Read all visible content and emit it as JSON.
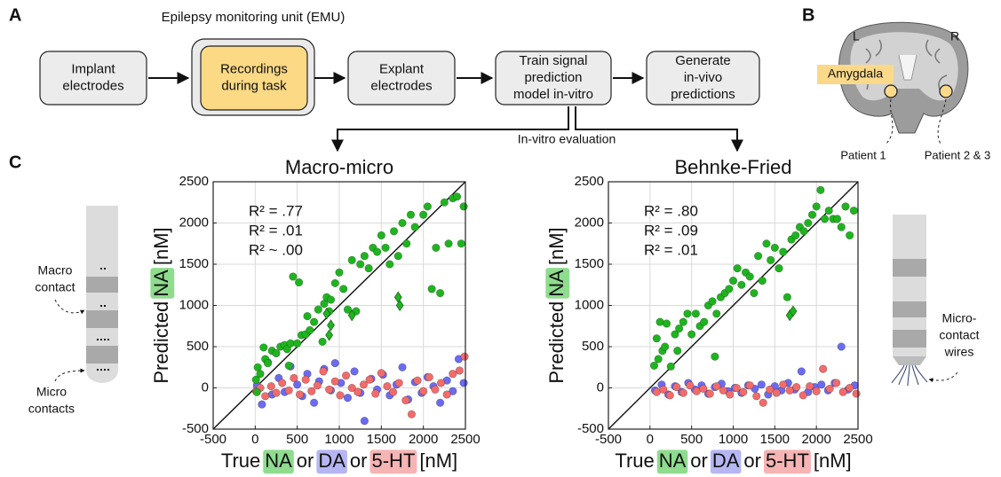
{
  "panel_labels": [
    "A",
    "B",
    "C"
  ],
  "flow": {
    "group_label": "Epilepsy monitoring unit (EMU)",
    "nodes": [
      {
        "lines": [
          "Implant",
          "electrodes"
        ]
      },
      {
        "lines": [
          "Recordings",
          "during task"
        ]
      },
      {
        "lines": [
          "Explant",
          "electrodes"
        ]
      },
      {
        "lines": [
          "Train signal",
          "prediction",
          "model in-vitro"
        ]
      },
      {
        "lines": [
          "Generate",
          "in-vivo",
          "predictions"
        ]
      }
    ],
    "evaluation_label": "In-vitro evaluation"
  },
  "brain": {
    "left": "L",
    "right": "R",
    "region": "Amygdala",
    "patients": [
      "Patient 1",
      "Patient 2 & 3"
    ]
  },
  "electrodes": {
    "macro_label": [
      "Macro",
      "contact"
    ],
    "micro_label": [
      "Micro",
      "contacts"
    ],
    "wires_label": [
      "Micro-",
      "contact",
      "wires"
    ]
  },
  "chart_data": [
    {
      "type": "scatter",
      "title": "Macro-micro",
      "xlabel": [
        {
          "text": "True"
        },
        {
          "text": "NA",
          "highlight": "#8fdc8f"
        },
        {
          "text": "or"
        },
        {
          "text": "DA",
          "highlight": "#b6b6f4"
        },
        {
          "text": "or"
        },
        {
          "text": "5-HT",
          "highlight": "#f6b4b4"
        },
        {
          "text": "[nM]"
        }
      ],
      "ylabel": [
        {
          "text": "Predicted"
        },
        {
          "text": "NA",
          "highlight": "#8fdc8f"
        },
        {
          "text": "[nM]"
        }
      ],
      "xlim": [
        -500,
        2500
      ],
      "ylim": [
        -500,
        2500
      ],
      "xticks": [
        -500,
        0,
        500,
        1000,
        1500,
        2000,
        2500
      ],
      "yticks": [
        -500,
        0,
        500,
        1000,
        1500,
        2000,
        2500
      ],
      "grid": true,
      "annotations": [
        {
          "text": "R² = .77",
          "color": "#1fa81f"
        },
        {
          "text": "R² = .01",
          "color": "#6464ee"
        },
        {
          "text": "R² ~ .00",
          "color": "#f06464"
        }
      ],
      "series": [
        {
          "name": "DA",
          "color": "#6b6bf2",
          "marker": "circle",
          "x": [
            20,
            80,
            150,
            200,
            280,
            350,
            420,
            500,
            560,
            620,
            700,
            760,
            820,
            900,
            950,
            1020,
            1100,
            1180,
            1250,
            1300,
            1380,
            1450,
            1520,
            1600,
            1680,
            1750,
            1820,
            1900,
            1980,
            2050,
            2120,
            2200,
            2280,
            2350,
            2420,
            2480
          ],
          "y": [
            30,
            -200,
            310,
            -80,
            120,
            -50,
            260,
            40,
            -100,
            170,
            -180,
            80,
            230,
            -30,
            300,
            60,
            -120,
            200,
            -60,
            -400,
            110,
            -20,
            160,
            -90,
            40,
            250,
            -140,
            70,
            -60,
            130,
            20,
            -180,
            90,
            -40,
            350,
            60
          ]
        },
        {
          "name": "5-HT",
          "color": "#f26b6b",
          "marker": "circle",
          "x": [
            10,
            60,
            120,
            190,
            250,
            320,
            400,
            460,
            530,
            600,
            670,
            740,
            810,
            880,
            950,
            1010,
            1080,
            1150,
            1220,
            1290,
            1360,
            1430,
            1500,
            1570,
            1640,
            1710,
            1790,
            1860,
            1930,
            2000,
            2070,
            2140,
            2210,
            2280,
            2350,
            2430,
            2490
          ],
          "y": [
            -40,
            0,
            -100,
            20,
            -60,
            60,
            -30,
            120,
            -80,
            100,
            -40,
            30,
            200,
            -20,
            80,
            -90,
            150,
            0,
            -50,
            40,
            100,
            -70,
            180,
            20,
            -50,
            60,
            -150,
            -320,
            90,
            -40,
            130,
            -20,
            60,
            -80,
            170,
            210,
            380
          ]
        },
        {
          "name": "NA",
          "color": "#1fb41f",
          "marker": "circle",
          "x": [
            10,
            20,
            30,
            60,
            100,
            120,
            150,
            200,
            250,
            300,
            350,
            380,
            400,
            420,
            450,
            500,
            520,
            550,
            600,
            620,
            650,
            700,
            750,
            800,
            820,
            850,
            880,
            900,
            950,
            1000,
            1050,
            1100,
            1150,
            1200,
            1250,
            1300,
            1350,
            1400,
            1450,
            1500,
            1550,
            1600,
            1650,
            1700,
            1750,
            1800,
            1850,
            1900,
            2000,
            2050,
            2100,
            2150,
            2200,
            2250,
            2300,
            2350,
            2400,
            2450,
            2480
          ],
          "y": [
            100,
            -50,
            250,
            170,
            490,
            350,
            300,
            450,
            420,
            500,
            520,
            470,
            270,
            540,
            1350,
            540,
            1280,
            640,
            650,
            870,
            700,
            800,
            950,
            560,
            1020,
            1100,
            930,
            1070,
            1270,
            1400,
            1200,
            950,
            1550,
            930,
            1500,
            1600,
            1450,
            1700,
            1650,
            1850,
            1700,
            1500,
            1900,
            1600,
            2000,
            1750,
            2100,
            1950,
            2100,
            2200,
            1200,
            1700,
            1150,
            2250,
            1750,
            2300,
            2320,
            1750,
            2200
          ]
        },
        {
          "color": "#1fb41f",
          "marker": "diamond",
          "x": [
            850,
            900,
            880,
            1150,
            1700,
            1720
          ],
          "y": [
            900,
            760,
            640,
            880,
            1100,
            1000
          ]
        }
      ]
    },
    {
      "type": "scatter",
      "title": "Behnke-Fried",
      "xlabel": [
        {
          "text": "True"
        },
        {
          "text": "NA",
          "highlight": "#8fdc8f"
        },
        {
          "text": "or"
        },
        {
          "text": "DA",
          "highlight": "#b6b6f4"
        },
        {
          "text": "or"
        },
        {
          "text": "5-HT",
          "highlight": "#f6b4b4"
        },
        {
          "text": "[nM]"
        }
      ],
      "ylabel": [
        {
          "text": "Predicted"
        },
        {
          "text": "NA",
          "highlight": "#8fdc8f"
        },
        {
          "text": "[nM]"
        }
      ],
      "xlim": [
        -500,
        2500
      ],
      "ylim": [
        -500,
        2500
      ],
      "xticks": [
        -500,
        0,
        500,
        1000,
        1500,
        2000,
        2500
      ],
      "yticks": [
        -500,
        0,
        500,
        1000,
        1500,
        2000,
        2500
      ],
      "grid": true,
      "annotations": [
        {
          "text": "R² = .80",
          "color": "#1fa81f"
        },
        {
          "text": "R² = .09",
          "color": "#6464ee"
        },
        {
          "text": "R² = .01",
          "color": "#f06464"
        }
      ],
      "series": [
        {
          "name": "DA",
          "color": "#6b6bf2",
          "marker": "circle",
          "x": [
            60,
            140,
            220,
            300,
            380,
            460,
            540,
            620,
            700,
            780,
            860,
            940,
            1020,
            1100,
            1180,
            1260,
            1340,
            1420,
            1500,
            1580,
            1660,
            1740,
            1820,
            1900,
            1980,
            2060,
            2140,
            2220,
            2300,
            2380,
            2460
          ],
          "y": [
            -30,
            40,
            -80,
            20,
            -50,
            60,
            -20,
            30,
            -70,
            10,
            50,
            -40,
            0,
            -60,
            30,
            -10,
            40,
            -80,
            20,
            -30,
            60,
            -20,
            200,
            -50,
            10,
            40,
            -30,
            60,
            500,
            -20,
            30
          ]
        },
        {
          "name": "5-HT",
          "color": "#f26b6b",
          "marker": "circle",
          "x": [
            80,
            160,
            240,
            320,
            400,
            480,
            560,
            640,
            720,
            800,
            880,
            960,
            1040,
            1120,
            1200,
            1280,
            1360,
            1440,
            1520,
            1600,
            1680,
            1760,
            1840,
            1920,
            2000,
            2080,
            2160,
            2240,
            2320,
            2400,
            2480
          ],
          "y": [
            -50,
            -20,
            -90,
            10,
            -60,
            30,
            -40,
            -10,
            -70,
            20,
            -30,
            -80,
            0,
            -50,
            30,
            -100,
            -180,
            -20,
            -60,
            40,
            -30,
            10,
            -90,
            20,
            -40,
            230,
            -10,
            60,
            -50,
            0,
            -70
          ]
        },
        {
          "name": "NA",
          "color": "#1fb41f",
          "marker": "circle",
          "x": [
            50,
            80,
            100,
            120,
            150,
            180,
            200,
            250,
            300,
            330,
            350,
            400,
            450,
            500,
            550,
            600,
            650,
            700,
            750,
            780,
            800,
            850,
            900,
            950,
            1000,
            1050,
            1100,
            1150,
            1200,
            1250,
            1300,
            1350,
            1400,
            1450,
            1500,
            1550,
            1600,
            1650,
            1700,
            1750,
            1800,
            1850,
            1900,
            1950,
            2000,
            2050,
            2100,
            2150,
            2200,
            2250,
            2300,
            2350,
            2400,
            2450
          ],
          "y": [
            270,
            600,
            350,
            800,
            450,
            500,
            780,
            260,
            650,
            450,
            720,
            800,
            900,
            650,
            900,
            750,
            800,
            1000,
            1050,
            380,
            900,
            1100,
            1150,
            1200,
            1300,
            1450,
            1250,
            1400,
            1350,
            1150,
            1600,
            1300,
            1750,
            1550,
            1700,
            1450,
            1650,
            1100,
            1800,
            1850,
            1950,
            1900,
            2000,
            2100,
            2200,
            2400,
            2050,
            2150,
            2050,
            2050,
            1950,
            2200,
            1850,
            2150
          ]
        },
        {
          "color": "#1fb41f",
          "marker": "diamond",
          "x": [
            1680,
            1720
          ],
          "y": [
            880,
            930
          ]
        }
      ]
    }
  ]
}
